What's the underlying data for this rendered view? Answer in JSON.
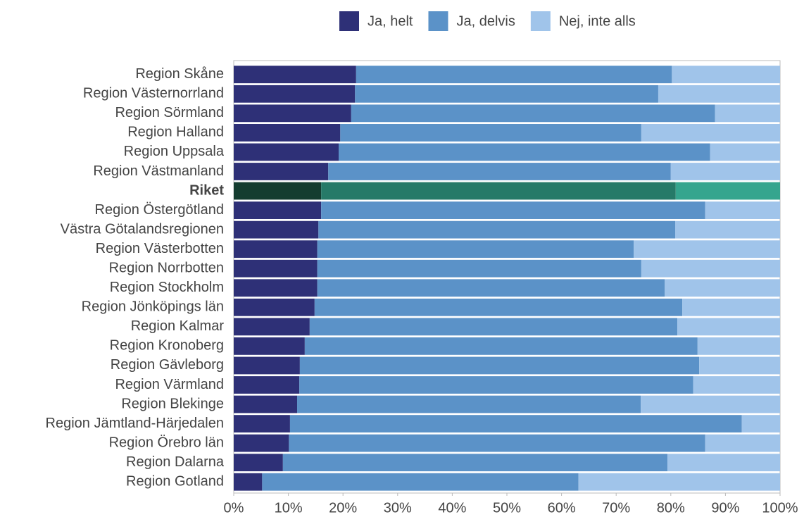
{
  "chart_data": {
    "type": "stacked_barh",
    "categories": [
      "Region Skåne",
      "Region Västernorrland",
      "Region Sörmland",
      "Region Halland",
      "Region Uppsala",
      "Region Västmanland",
      "Riket",
      "Region Östergötland",
      "Västra Götalandsregionen",
      "Region Västerbotten",
      "Region Norrbotten",
      "Region Stockholm",
      "Region Jönköpings län",
      "Region Kalmar",
      "Region Kronoberg",
      "Region Gävleborg",
      "Region Värmland",
      "Region Blekinge",
      "Region Jämtland-Härjedalen",
      "Region Örebro län",
      "Region Dalarna",
      "Region Gotland"
    ],
    "series": [
      {
        "name": "Ja, helt",
        "color": "#2e3077",
        "values": [
          22.4,
          22.2,
          21.5,
          19.5,
          19.2,
          17.3,
          16.0,
          16.0,
          15.5,
          15.3,
          15.3,
          15.3,
          14.8,
          13.9,
          13.0,
          12.1,
          12.0,
          11.6,
          10.3,
          10.1,
          9.0,
          5.2
        ]
      },
      {
        "name": "Ja, delvis",
        "color": "#5b92c8",
        "values": [
          57.8,
          55.5,
          66.6,
          55.1,
          68.0,
          62.7,
          64.9,
          70.3,
          65.3,
          57.9,
          59.3,
          63.6,
          67.3,
          67.3,
          71.9,
          73.1,
          72.1,
          62.9,
          82.7,
          76.2,
          70.4,
          57.9
        ]
      },
      {
        "name": "Nej, inte alls",
        "color": "#a0c4ea",
        "values": [
          19.8,
          22.3,
          11.9,
          25.4,
          12.8,
          20.0,
          19.1,
          13.7,
          19.2,
          26.8,
          25.4,
          21.1,
          17.9,
          18.8,
          15.1,
          14.8,
          15.9,
          25.5,
          7.0,
          13.7,
          20.6,
          36.9
        ]
      }
    ],
    "highlight": "Riket",
    "highlight_colors": [
      "#143d30",
      "#267a68",
      "#35a58e"
    ],
    "xlim": [
      0,
      100
    ],
    "xticks": [
      {
        "value": 0,
        "label": "0%"
      },
      {
        "value": 10,
        "label": "10%"
      },
      {
        "value": 20,
        "label": "20%"
      },
      {
        "value": 30,
        "label": "30%"
      },
      {
        "value": 40,
        "label": "40%"
      },
      {
        "value": 50,
        "label": "50%"
      },
      {
        "value": 60,
        "label": "60%"
      },
      {
        "value": 70,
        "label": "70%"
      },
      {
        "value": 80,
        "label": "80%"
      },
      {
        "value": 90,
        "label": "90%"
      },
      {
        "value": 100,
        "label": "100%"
      }
    ],
    "legend": "top"
  }
}
